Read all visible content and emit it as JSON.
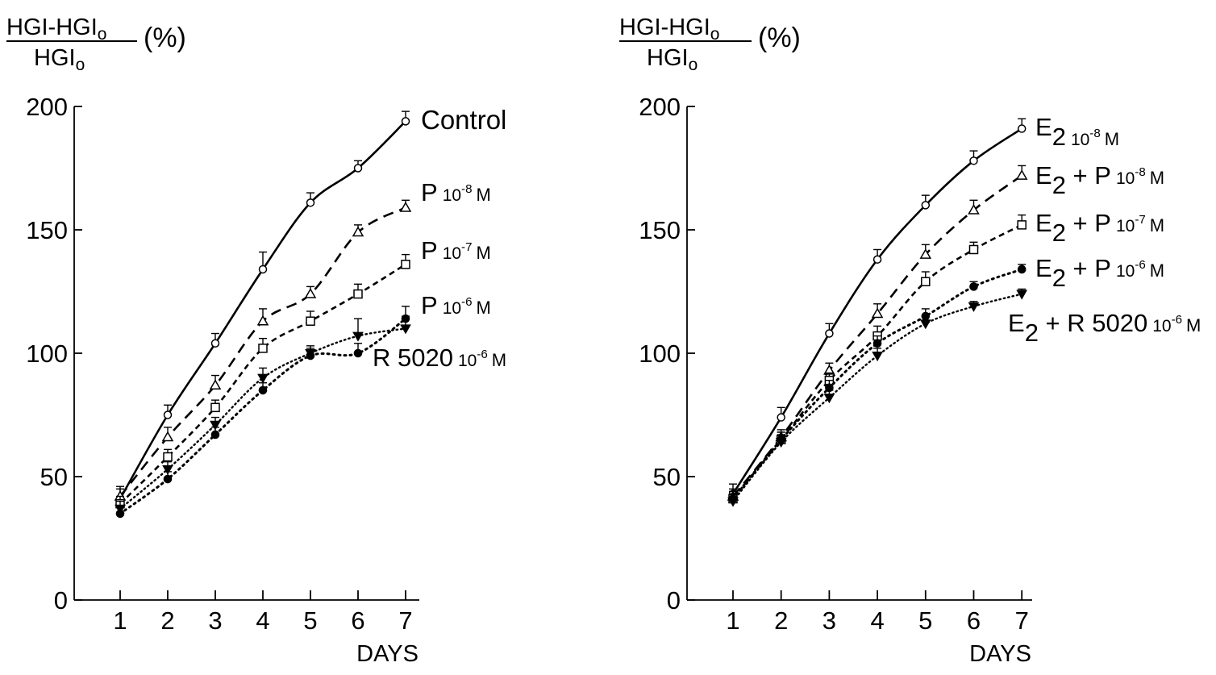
{
  "chart_data": [
    {
      "type": "line",
      "ylabel_numerator": "HGI-HGI",
      "ylabel_numerator_sub": "o",
      "ylabel_denominator": "HGI",
      "ylabel_denominator_sub": "o",
      "ylabel_unit": "(%)",
      "xlabel": "DAYS",
      "x": [
        1,
        2,
        3,
        4,
        5,
        6,
        7
      ],
      "x_ticks": [
        "1",
        "2",
        "3",
        "4",
        "5",
        "6",
        "7"
      ],
      "y_ticks": [
        0,
        50,
        100,
        150,
        200
      ],
      "xlim": [
        0.05,
        7.3
      ],
      "ylim": [
        0,
        200
      ],
      "series": [
        {
          "label_main": "Control",
          "label_sup": "",
          "label_unit": "",
          "marker": "circle-open",
          "line": "solid",
          "values": [
            41,
            75,
            104,
            134,
            161,
            175,
            194
          ],
          "errors": [
            5,
            4,
            4,
            7,
            4,
            3,
            4
          ]
        },
        {
          "label_main": "P",
          "label_sup": "10",
          "label_exp": "-8",
          "label_unit": "M",
          "marker": "triangle-open",
          "line": "dash-long",
          "values": [
            42,
            66,
            87,
            113,
            124,
            149,
            159
          ],
          "errors": [
            3,
            4,
            4,
            5,
            3,
            3,
            3
          ]
        },
        {
          "label_main": "P",
          "label_sup": "10",
          "label_exp": "-7",
          "label_unit": "M",
          "marker": "square-open",
          "line": "dash-short",
          "values": [
            39,
            58,
            78,
            102,
            113,
            124,
            136
          ],
          "errors": [
            3,
            3,
            3,
            4,
            4,
            4,
            4
          ]
        },
        {
          "label_main": "P",
          "label_sup": "10",
          "label_exp": "-6",
          "label_unit": "M",
          "marker": "circle-filled",
          "line": "dotted",
          "values": [
            35,
            49,
            67,
            85,
            99,
            100,
            114
          ],
          "errors": [
            3,
            3,
            3,
            3,
            3,
            4,
            5
          ]
        },
        {
          "label_main": "R 5020",
          "label_sup": "10",
          "label_exp": "-6",
          "label_unit": "M",
          "marker": "triangle-down-filled",
          "line": "dotted-fine",
          "values": [
            37,
            53,
            71,
            90,
            100,
            107,
            110
          ],
          "errors": [
            3,
            3,
            3,
            4,
            3,
            7,
            5
          ]
        }
      ]
    },
    {
      "type": "line",
      "ylabel_numerator": "HGI-HGI",
      "ylabel_numerator_sub": "o",
      "ylabel_denominator": "HGI",
      "ylabel_denominator_sub": "o",
      "ylabel_unit": "(%)",
      "xlabel": "DAYS",
      "x": [
        1,
        2,
        3,
        4,
        5,
        6,
        7
      ],
      "x_ticks": [
        "1",
        "2",
        "3",
        "4",
        "5",
        "6",
        "7"
      ],
      "y_ticks": [
        0,
        50,
        100,
        150,
        200
      ],
      "xlim": [
        0,
        7.1
      ],
      "ylim": [
        0,
        200
      ],
      "series": [
        {
          "label_main": "E",
          "label_sub": "2",
          "label_rest": "",
          "label_sup": "10",
          "label_exp": "-8",
          "label_unit": "M",
          "marker": "circle-open",
          "line": "solid",
          "values": [
            43,
            74,
            108,
            138,
            160,
            178,
            191
          ],
          "errors": [
            4,
            4,
            4,
            4,
            4,
            4,
            4
          ]
        },
        {
          "label_main": "E",
          "label_sub": "2",
          "label_rest": "+ P",
          "label_sup": "10",
          "label_exp": "-8",
          "label_unit": "M",
          "marker": "triangle-open",
          "line": "dash-long",
          "values": [
            42,
            66,
            93,
            116,
            140,
            158,
            172
          ],
          "errors": [
            3,
            3,
            3,
            4,
            4,
            4,
            4
          ]
        },
        {
          "label_main": "E",
          "label_sub": "2",
          "label_rest": "+ P",
          "label_sup": "10",
          "label_exp": "-7",
          "label_unit": "M",
          "marker": "square-open",
          "line": "dash-short",
          "values": [
            41,
            65,
            89,
            107,
            129,
            142,
            152
          ],
          "errors": [
            3,
            3,
            3,
            4,
            4,
            3,
            4
          ]
        },
        {
          "label_main": "E",
          "label_sub": "2",
          "label_rest": "+ P",
          "label_sup": "10",
          "label_exp": "-6",
          "label_unit": "M",
          "marker": "circle-filled",
          "line": "dotted",
          "values": [
            41,
            65,
            86,
            104,
            115,
            127,
            134
          ],
          "errors": [
            3,
            3,
            3,
            3,
            3,
            2,
            2
          ]
        },
        {
          "label_main": "E",
          "label_sub": "2",
          "label_rest": "+ R 5020",
          "label_sup": "10",
          "label_exp": "-6",
          "label_unit": "M",
          "marker": "triangle-down-filled",
          "line": "dotted-fine",
          "values": [
            40,
            64,
            82,
            99,
            112,
            119,
            124
          ],
          "errors": [
            3,
            3,
            3,
            3,
            3,
            2,
            2
          ]
        }
      ]
    }
  ]
}
